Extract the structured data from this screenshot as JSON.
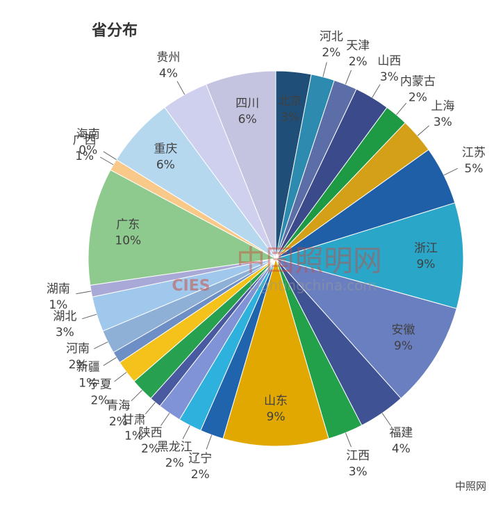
{
  "chart_data": {
    "type": "pie",
    "title": "省分布",
    "categories": [
      "北京",
      "河北",
      "天津",
      "山西",
      "内蒙古",
      "上海",
      "江苏",
      "浙江",
      "安徽",
      "福建",
      "江西",
      "山东",
      "辽宁",
      "黑龙江",
      "陕西",
      "甘肃",
      "青海",
      "宁夏",
      "新疆",
      "河南",
      "湖北",
      "湖南",
      "广东",
      "广西",
      "海南",
      "重庆",
      "贵州",
      "四川"
    ],
    "values": [
      3,
      2,
      2,
      3,
      2,
      3,
      5,
      9,
      9,
      4,
      3,
      9,
      2,
      2,
      2,
      1,
      2,
      2,
      1,
      2,
      3,
      1,
      10,
      1,
      0,
      6,
      4,
      6
    ],
    "value_labels": [
      "3%",
      "2%",
      "2%",
      "3%",
      "2%",
      "3%",
      "5%",
      "9%",
      "9%",
      "4%",
      "3%",
      "9%",
      "2%",
      "2%",
      "2%",
      "1%",
      "2%",
      "2%",
      "1%",
      "2%",
      "3%",
      "1%",
      "10%",
      "1%",
      "0%",
      "6%",
      "4%",
      "6%"
    ],
    "colors": [
      "#1f4e79",
      "#2e8bb0",
      "#5b6ea8",
      "#3a4a8a",
      "#1e9a45",
      "#d4a017",
      "#1f5fa8",
      "#2aa6c9",
      "#6a7fc0",
      "#3f5394",
      "#23a04a",
      "#e0a800",
      "#1f64ad",
      "#2fb1dd",
      "#7f93d6",
      "#4a5aa0",
      "#27a150",
      "#f5c21b",
      "#6d8fc6",
      "#8eb0d6",
      "#9fc8ec",
      "#a9a9d8",
      "#8ec98e",
      "#f9c98a",
      "#c9cde8",
      "#b5d8ef",
      "#cfcfee",
      "#c4c4e0"
    ],
    "watermark": {
      "site": "中国照明网",
      "org": "CIES",
      "url": "Lightingchina.com"
    },
    "footer": "中照网"
  }
}
